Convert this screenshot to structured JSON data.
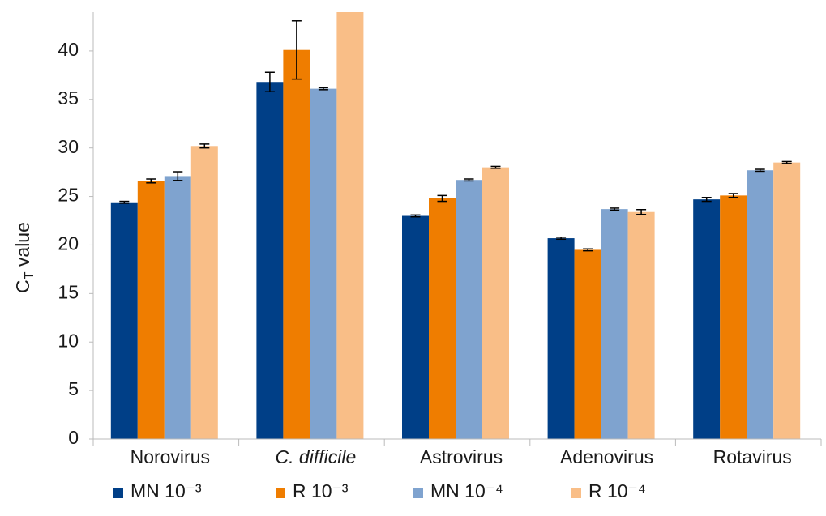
{
  "chart_data": {
    "type": "bar",
    "y_label": [
      "C",
      "T",
      " value"
    ],
    "categories": [
      "Norovirus",
      "C. difficile",
      "Astrovirus",
      "Adenovirus",
      "Rotavirus"
    ],
    "italic_categories": [
      false,
      true,
      false,
      false,
      false
    ],
    "series": [
      {
        "name": "MN 10⁻³",
        "color": "#003f87",
        "values": [
          24.4,
          36.8,
          23.0,
          20.7,
          24.7
        ],
        "errors": [
          0.1,
          1.0,
          0.1,
          0.1,
          0.2
        ]
      },
      {
        "name": "R 10⁻³",
        "color": "#ef7d00",
        "values": [
          26.6,
          40.1,
          24.8,
          19.5,
          25.1
        ],
        "errors": [
          0.2,
          3.0,
          0.3,
          0.1,
          0.2
        ]
      },
      {
        "name": "MN 10⁻⁴",
        "color": "#7fa3cf",
        "values": [
          27.1,
          36.1,
          26.7,
          23.7,
          27.7
        ],
        "errors": [
          0.45,
          0.1,
          0.1,
          0.1,
          0.1
        ]
      },
      {
        "name": "R 10⁻⁴",
        "color": "#f9be87",
        "values": [
          30.2,
          44,
          28.0,
          23.4,
          28.5
        ],
        "errors": [
          0.2,
          null,
          0.1,
          0.25,
          0.1
        ]
      }
    ],
    "ylim": [
      0,
      44
    ],
    "yticks": [
      0,
      5,
      10,
      15,
      20,
      25,
      30,
      35,
      40
    ],
    "grid": false,
    "legend": "bottom"
  }
}
